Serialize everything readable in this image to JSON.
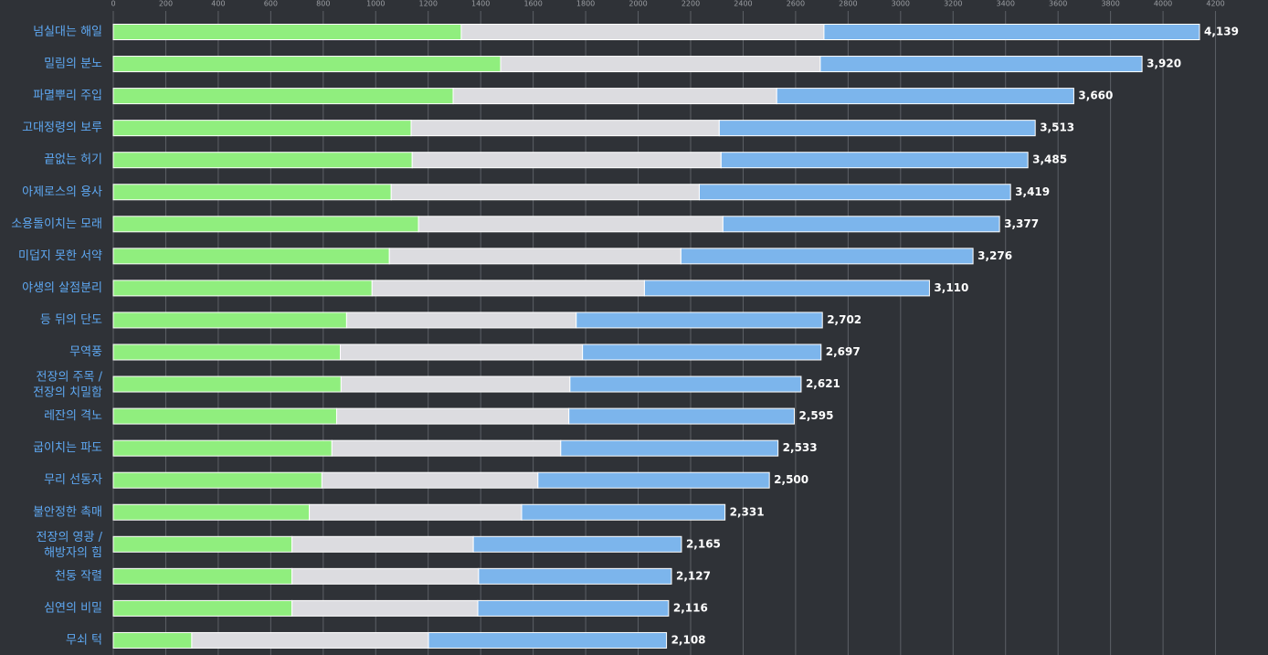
{
  "chart_data": {
    "type": "stacked_bar_horizontal",
    "categories": [
      "넘실대는 해일",
      "밀림의 분노",
      "파멸뿌리 주입",
      "고대정령의 보루",
      "끝없는 허기",
      "아제로스의 용사",
      "소용돌이치는 모래",
      "미덥지 못한 서약",
      "야생의 살점분리",
      "등 뒤의 단도",
      "무역풍",
      [
        "전장의 주목 /",
        "전장의 치밀함"
      ],
      "레잔의 격노",
      "굽이치는 파도",
      "무리 선동자",
      "불안정한 촉매",
      [
        "전장의 영광 /",
        "해방자의 힘"
      ],
      "천둥 작렬",
      "심연의 비밀",
      "무쇠 턱"
    ],
    "series": [
      {
        "color": "#90ee7e",
        "values": [
          1326,
          1476,
          1295,
          1135,
          1139,
          1059,
          1163,
          1052,
          986,
          889,
          865,
          868,
          851,
          833,
          795,
          747,
          681,
          681,
          681,
          299
        ]
      },
      {
        "color": "#dcdce0",
        "values": [
          1382,
          1218,
          1233,
          1174,
          1177,
          1174,
          1160,
          1111,
          1038,
          875,
          923,
          872,
          885,
          872,
          823,
          809,
          691,
          711,
          708,
          902
        ]
      },
      {
        "color": "#7cb5ec",
        "values": [
          1431,
          1226,
          1132,
          1204,
          1169,
          1186,
          1054,
          1113,
          1086,
          938,
          909,
          881,
          859,
          828,
          882,
          775,
          793,
          735,
          727,
          907
        ]
      }
    ],
    "total_labels": [
      "4,139",
      "3,920",
      "3,660",
      "3,513",
      "3,485",
      "3,419",
      "3,377",
      "3,276",
      "3,110",
      "2,702",
      "2,697",
      "2,621",
      "2,595",
      "2,533",
      "2,500",
      "2,331",
      "2,165",
      "2,127",
      "2,116",
      "2,108"
    ],
    "xlim": [
      0,
      4400
    ],
    "xticks": [
      0,
      200,
      400,
      600,
      800,
      1000,
      1200,
      1400,
      1600,
      1800,
      2000,
      2200,
      2400,
      2600,
      2800,
      3000,
      3200,
      3400,
      3600,
      3800,
      4000,
      4200
    ],
    "grid": true
  }
}
